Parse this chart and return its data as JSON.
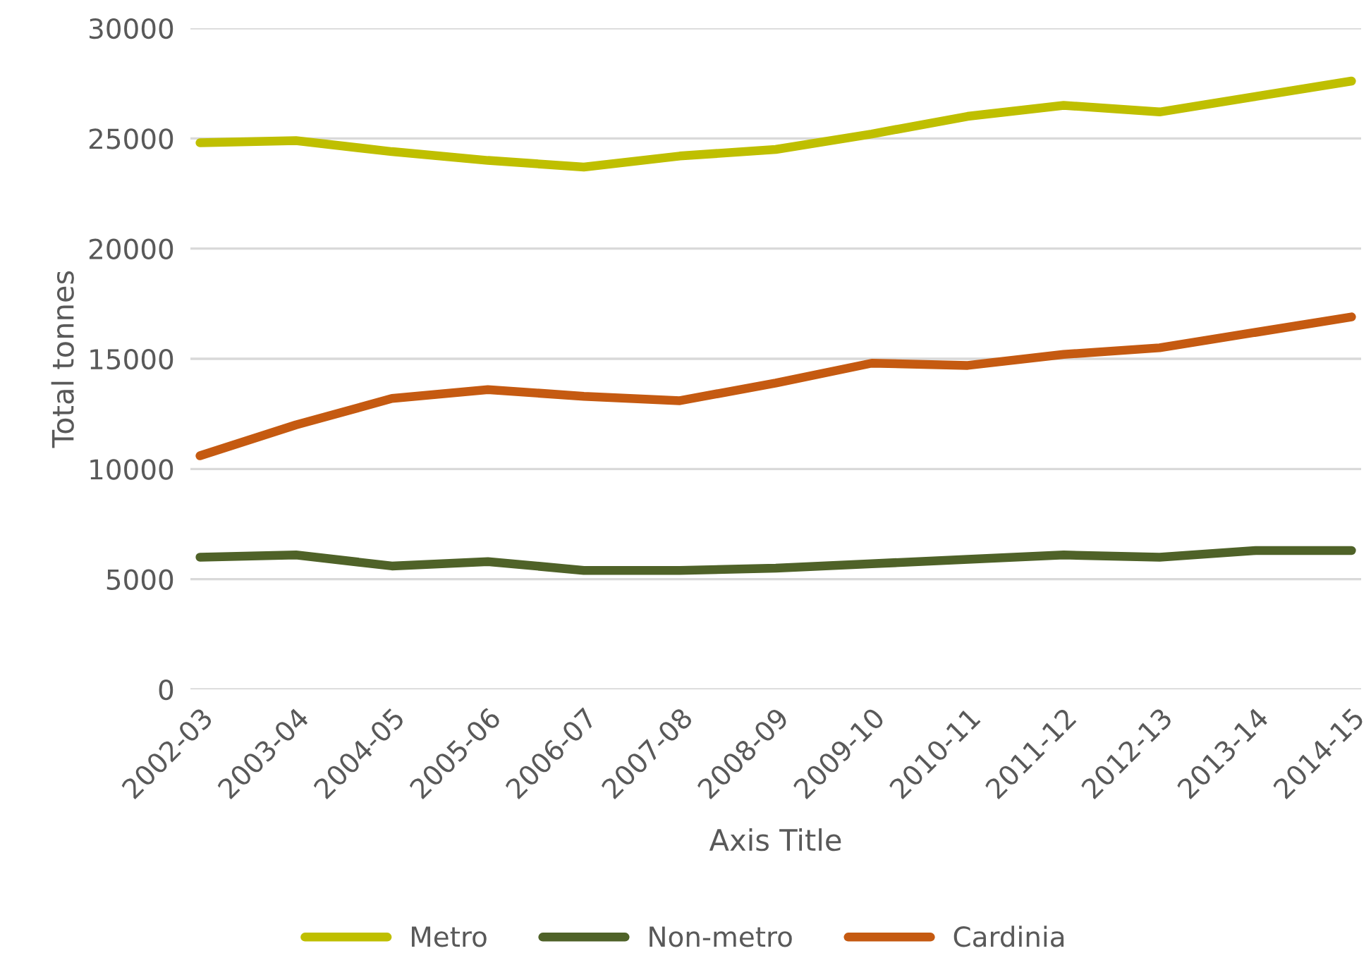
{
  "chart_data": {
    "type": "line",
    "xlabel": "Axis Title",
    "ylabel": "Total tonnes",
    "categories": [
      "2002-03",
      "2003-04",
      "2004-05",
      "2005-06",
      "2006-07",
      "2007-08",
      "2008-09",
      "2009-10",
      "2010-11",
      "2011-12",
      "2012-13",
      "2013-14",
      "2014-15"
    ],
    "series": [
      {
        "name": "Metro",
        "color": "#bfbf00",
        "values": [
          24800,
          24900,
          24400,
          24000,
          23700,
          24200,
          24500,
          25200,
          26000,
          26500,
          26200,
          26900,
          27600
        ]
      },
      {
        "name": "Non-metro",
        "color": "#4f6228",
        "values": [
          6000,
          6100,
          5600,
          5800,
          5400,
          5400,
          5500,
          5700,
          5900,
          6100,
          6000,
          6300,
          6300
        ]
      },
      {
        "name": "Cardinia",
        "color": "#c55a11",
        "values": [
          10600,
          12000,
          13200,
          13600,
          13300,
          13100,
          13900,
          14800,
          14700,
          15200,
          15500,
          16200,
          16900
        ]
      }
    ],
    "ylim": [
      0,
      30000
    ],
    "yticks": [
      0,
      5000,
      10000,
      15000,
      20000,
      25000,
      30000
    ],
    "grid": "y",
    "legend": "bottom",
    "marker": "none",
    "line_style": "solid"
  }
}
